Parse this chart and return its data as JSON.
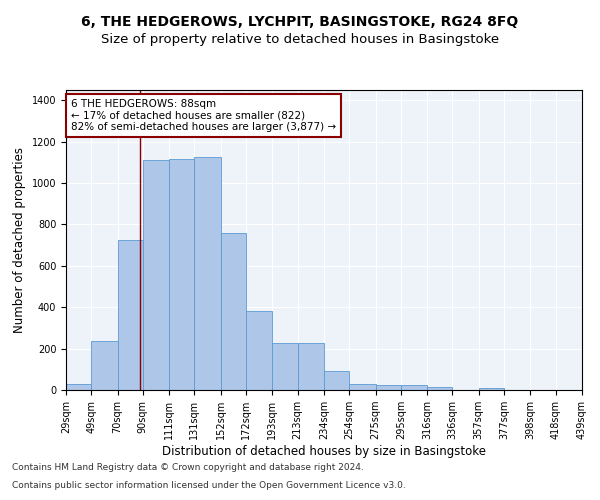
{
  "title": "6, THE HEDGEROWS, LYCHPIT, BASINGSTOKE, RG24 8FQ",
  "subtitle": "Size of property relative to detached houses in Basingstoke",
  "xlabel": "Distribution of detached houses by size in Basingstoke",
  "ylabel": "Number of detached properties",
  "footnote1": "Contains HM Land Registry data © Crown copyright and database right 2024.",
  "footnote2": "Contains public sector information licensed under the Open Government Licence v3.0.",
  "annotation_line1": "6 THE HEDGEROWS: 88sqm",
  "annotation_line2": "← 17% of detached houses are smaller (822)",
  "annotation_line3": "82% of semi-detached houses are larger (3,877) →",
  "bar_color": "#aec6e8",
  "bar_edge_color": "#5b9bd5",
  "vline_color": "#8b0000",
  "vline_x": 88,
  "bin_edges": [
    29,
    49,
    70,
    90,
    111,
    131,
    152,
    172,
    193,
    213,
    234,
    254,
    275,
    295,
    316,
    336,
    357,
    377,
    398,
    418,
    439
  ],
  "bar_heights": [
    30,
    235,
    725,
    1110,
    1115,
    1125,
    760,
    380,
    225,
    225,
    90,
    30,
    25,
    25,
    15,
    0,
    10,
    0,
    0,
    0
  ],
  "ylim": [
    0,
    1450
  ],
  "yticks": [
    0,
    200,
    400,
    600,
    800,
    1000,
    1200,
    1400
  ],
  "bg_color": "#eef2f9",
  "grid_color": "#ffffff",
  "title_fontsize": 10,
  "subtitle_fontsize": 9.5,
  "axis_label_fontsize": 8.5,
  "tick_fontsize": 7,
  "annotation_fontsize": 7.5,
  "footnote_fontsize": 6.5
}
